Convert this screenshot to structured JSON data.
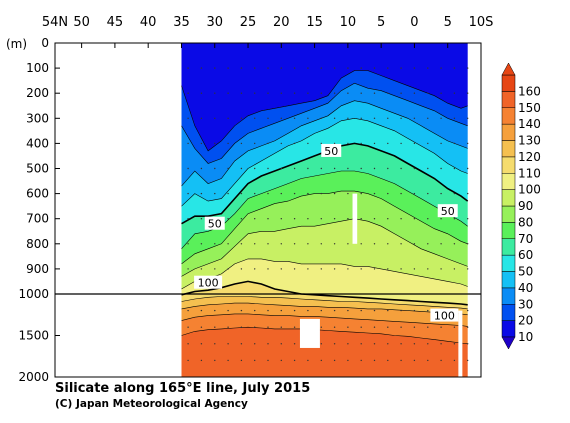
{
  "chart_data": {
    "type": "heatmap",
    "title": "Silicate along 165°E line, July 2015",
    "credit": "(C) Japan Meteorological Agency",
    "x_axis": {
      "ticks": [
        "54N",
        "50",
        "45",
        "40",
        "35",
        "30",
        "25",
        "20",
        "15",
        "10",
        "5",
        "0",
        "5",
        "10S"
      ],
      "tick_lat": [
        54,
        50,
        45,
        40,
        35,
        30,
        25,
        20,
        15,
        10,
        5,
        0,
        -5,
        -10
      ],
      "range": [
        54,
        -10
      ],
      "data_range": [
        35,
        -8
      ]
    },
    "y_axis": {
      "unit_label": "(m)",
      "upper_ticks": [
        "0",
        "100",
        "200",
        "300",
        "400",
        "500",
        "600",
        "700",
        "800",
        "900",
        "1000"
      ],
      "lower_ticks": [
        "1500",
        "2000"
      ],
      "upper_range": [
        0,
        1000
      ],
      "lower_range": [
        1000,
        2000
      ],
      "split_depth": 1000
    },
    "colorbar": {
      "levels": [
        10,
        20,
        30,
        40,
        50,
        60,
        70,
        80,
        90,
        100,
        110,
        120,
        130,
        140,
        150,
        160
      ],
      "labels": [
        "10",
        "20",
        "30",
        "40",
        "50",
        "60",
        "70",
        "80",
        "90",
        "100",
        "110",
        "120",
        "130",
        "140",
        "150",
        "160"
      ],
      "colors": [
        "#0a0ae6",
        "#0050f0",
        "#0a8cf5",
        "#14c0f5",
        "#28e6e6",
        "#3ceba0",
        "#5af05a",
        "#96f05a",
        "#c8f064",
        "#f0f082",
        "#f5dc6e",
        "#f5c050",
        "#f5a03c",
        "#f58232",
        "#f06428",
        "#e64614"
      ]
    },
    "contour_labels": [
      {
        "text": "50",
        "lat": 12.5,
        "depth": 430
      },
      {
        "text": "50",
        "lat": 30,
        "depth": 720
      },
      {
        "text": "50",
        "lat": -5,
        "depth": 670
      },
      {
        "text": "100",
        "lat": 31,
        "depth": 955
      },
      {
        "text": "100",
        "lat": -4.5,
        "depth": 1260
      }
    ],
    "profiles": [
      {
        "lat": 35,
        "depths": [
          0,
          170,
          330,
          570,
          650,
          720,
          820,
          880,
          930,
          980,
          1010,
          1090,
          1180,
          1320,
          1500
        ]
      },
      {
        "lat": 33,
        "depths": [
          0,
          330,
          420,
          510,
          600,
          690,
          760,
          840,
          900,
          950,
          990,
          1060,
          1150,
          1280,
          1450
        ]
      },
      {
        "lat": 31,
        "depths": [
          0,
          430,
          480,
          560,
          630,
          690,
          750,
          820,
          880,
          940,
          985,
          1040,
          1130,
          1260,
          1430
        ]
      },
      {
        "lat": 29,
        "depths": [
          0,
          390,
          460,
          540,
          620,
          680,
          730,
          800,
          860,
          920,
          975,
          1030,
          1120,
          1250,
          1420
        ]
      },
      {
        "lat": 27,
        "depths": [
          0,
          330,
          400,
          470,
          560,
          620,
          680,
          740,
          810,
          880,
          960,
          1030,
          1110,
          1240,
          1410
        ]
      },
      {
        "lat": 25,
        "depths": [
          0,
          290,
          360,
          430,
          500,
          560,
          620,
          680,
          760,
          860,
          950,
          1030,
          1110,
          1240,
          1400
        ]
      },
      {
        "lat": 23,
        "depths": [
          0,
          270,
          340,
          410,
          470,
          530,
          600,
          660,
          750,
          860,
          960,
          1040,
          1120,
          1250,
          1410
        ]
      },
      {
        "lat": 21,
        "depths": [
          0,
          260,
          320,
          390,
          440,
          510,
          580,
          640,
          750,
          870,
          980,
          1040,
          1130,
          1260,
          1420
        ]
      },
      {
        "lat": 19,
        "depths": [
          0,
          250,
          300,
          360,
          410,
          490,
          560,
          630,
          740,
          870,
          990,
          1050,
          1140,
          1260,
          1420
        ]
      },
      {
        "lat": 17,
        "depths": [
          0,
          240,
          280,
          330,
          390,
          470,
          540,
          610,
          730,
          880,
          1000,
          1060,
          1150,
          1270,
          1420
        ]
      },
      {
        "lat": 15,
        "depths": [
          0,
          230,
          260,
          310,
          360,
          450,
          530,
          600,
          730,
          880,
          1010,
          1070,
          1150,
          1270,
          1430
        ]
      },
      {
        "lat": 13,
        "depths": [
          0,
          210,
          240,
          290,
          340,
          430,
          520,
          600,
          720,
          880,
          1020,
          1080,
          1160,
          1280,
          1440
        ]
      },
      {
        "lat": 11,
        "depths": [
          0,
          140,
          190,
          250,
          310,
          410,
          510,
          590,
          710,
          880,
          1030,
          1090,
          1160,
          1290,
          1450
        ]
      },
      {
        "lat": 9,
        "depths": [
          0,
          110,
          160,
          230,
          300,
          400,
          510,
          590,
          700,
          890,
          1040,
          1090,
          1170,
          1300,
          1460
        ]
      },
      {
        "lat": 7,
        "depths": [
          0,
          110,
          180,
          240,
          310,
          410,
          520,
          600,
          710,
          890,
          1050,
          1100,
          1180,
          1310,
          1470
        ]
      },
      {
        "lat": 5,
        "depths": [
          0,
          130,
          190,
          260,
          330,
          430,
          540,
          620,
          730,
          900,
          1060,
          1110,
          1180,
          1320,
          1480
        ]
      },
      {
        "lat": 3,
        "depths": [
          0,
          150,
          210,
          280,
          350,
          450,
          560,
          650,
          760,
          910,
          1070,
          1120,
          1190,
          1330,
          1500
        ]
      },
      {
        "lat": 1,
        "depths": [
          0,
          170,
          230,
          300,
          380,
          480,
          590,
          680,
          790,
          920,
          1080,
          1130,
          1200,
          1340,
          1510
        ]
      },
      {
        "lat": -1,
        "depths": [
          0,
          190,
          250,
          330,
          410,
          510,
          620,
          710,
          820,
          930,
          1090,
          1140,
          1210,
          1350,
          1530
        ]
      },
      {
        "lat": -3,
        "depths": [
          0,
          210,
          270,
          360,
          440,
          540,
          650,
          740,
          840,
          940,
          1100,
          1150,
          1220,
          1360,
          1550
        ]
      },
      {
        "lat": -5,
        "depths": [
          0,
          240,
          300,
          390,
          480,
          580,
          680,
          760,
          860,
          950,
          1110,
          1160,
          1230,
          1370,
          1570
        ]
      },
      {
        "lat": -7,
        "depths": [
          0,
          260,
          320,
          410,
          510,
          610,
          710,
          790,
          880,
          960,
          1120,
          1170,
          1240,
          1380,
          1590
        ]
      },
      {
        "lat": -8,
        "depths": [
          0,
          250,
          330,
          420,
          520,
          630,
          730,
          800,
          890,
          970,
          1130,
          1180,
          1250,
          1390,
          1600
        ]
      }
    ],
    "masked_boxes": [
      {
        "lat1": 9.3,
        "lat2": 8.6,
        "d1": 600,
        "d2": 800
      },
      {
        "lat1": 17.2,
        "lat2": 14.2,
        "d1": 1300,
        "d2": 1650
      },
      {
        "lat1": -6.6,
        "lat2": -7.2,
        "d1": 1200,
        "d2": 2000
      }
    ]
  }
}
